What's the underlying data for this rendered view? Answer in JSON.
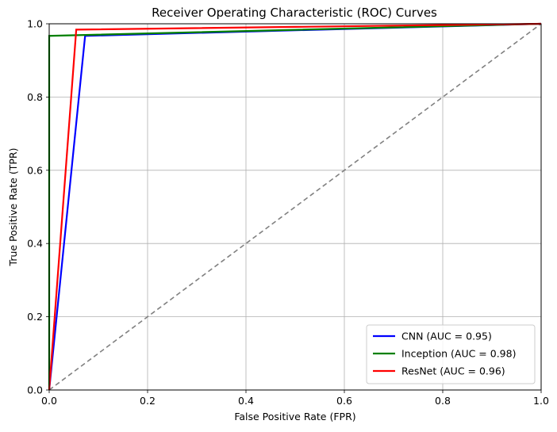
{
  "chart_data": {
    "type": "line",
    "title": "Receiver Operating Characteristic (ROC) Curves",
    "xlabel": "False Positive Rate (FPR)",
    "ylabel": "True Positive Rate (TPR)",
    "xlim": [
      0,
      1
    ],
    "ylim": [
      0,
      1
    ],
    "xticks": [
      "0.0",
      "0.2",
      "0.4",
      "0.6",
      "0.8",
      "1.0"
    ],
    "yticks": [
      "0.0",
      "0.2",
      "0.4",
      "0.6",
      "0.8",
      "1.0"
    ],
    "grid": true,
    "legend_position": "lower-right",
    "series": [
      {
        "name": "CNN (AUC = 0.95)",
        "color": "#0000ff",
        "x": [
          0,
          0.073,
          1
        ],
        "y": [
          0,
          0.967,
          1
        ]
      },
      {
        "name": "Inception (AUC = 0.98)",
        "color": "#008000",
        "x": [
          0,
          0,
          1
        ],
        "y": [
          0,
          0.967,
          1
        ]
      },
      {
        "name": "ResNet (AUC = 0.96)",
        "color": "#ff0000",
        "x": [
          0,
          0.055,
          1
        ],
        "y": [
          0,
          0.984,
          1
        ]
      }
    ],
    "reference_line": {
      "color": "#808080",
      "style": "dashed",
      "x": [
        0,
        1
      ],
      "y": [
        0,
        1
      ]
    }
  }
}
